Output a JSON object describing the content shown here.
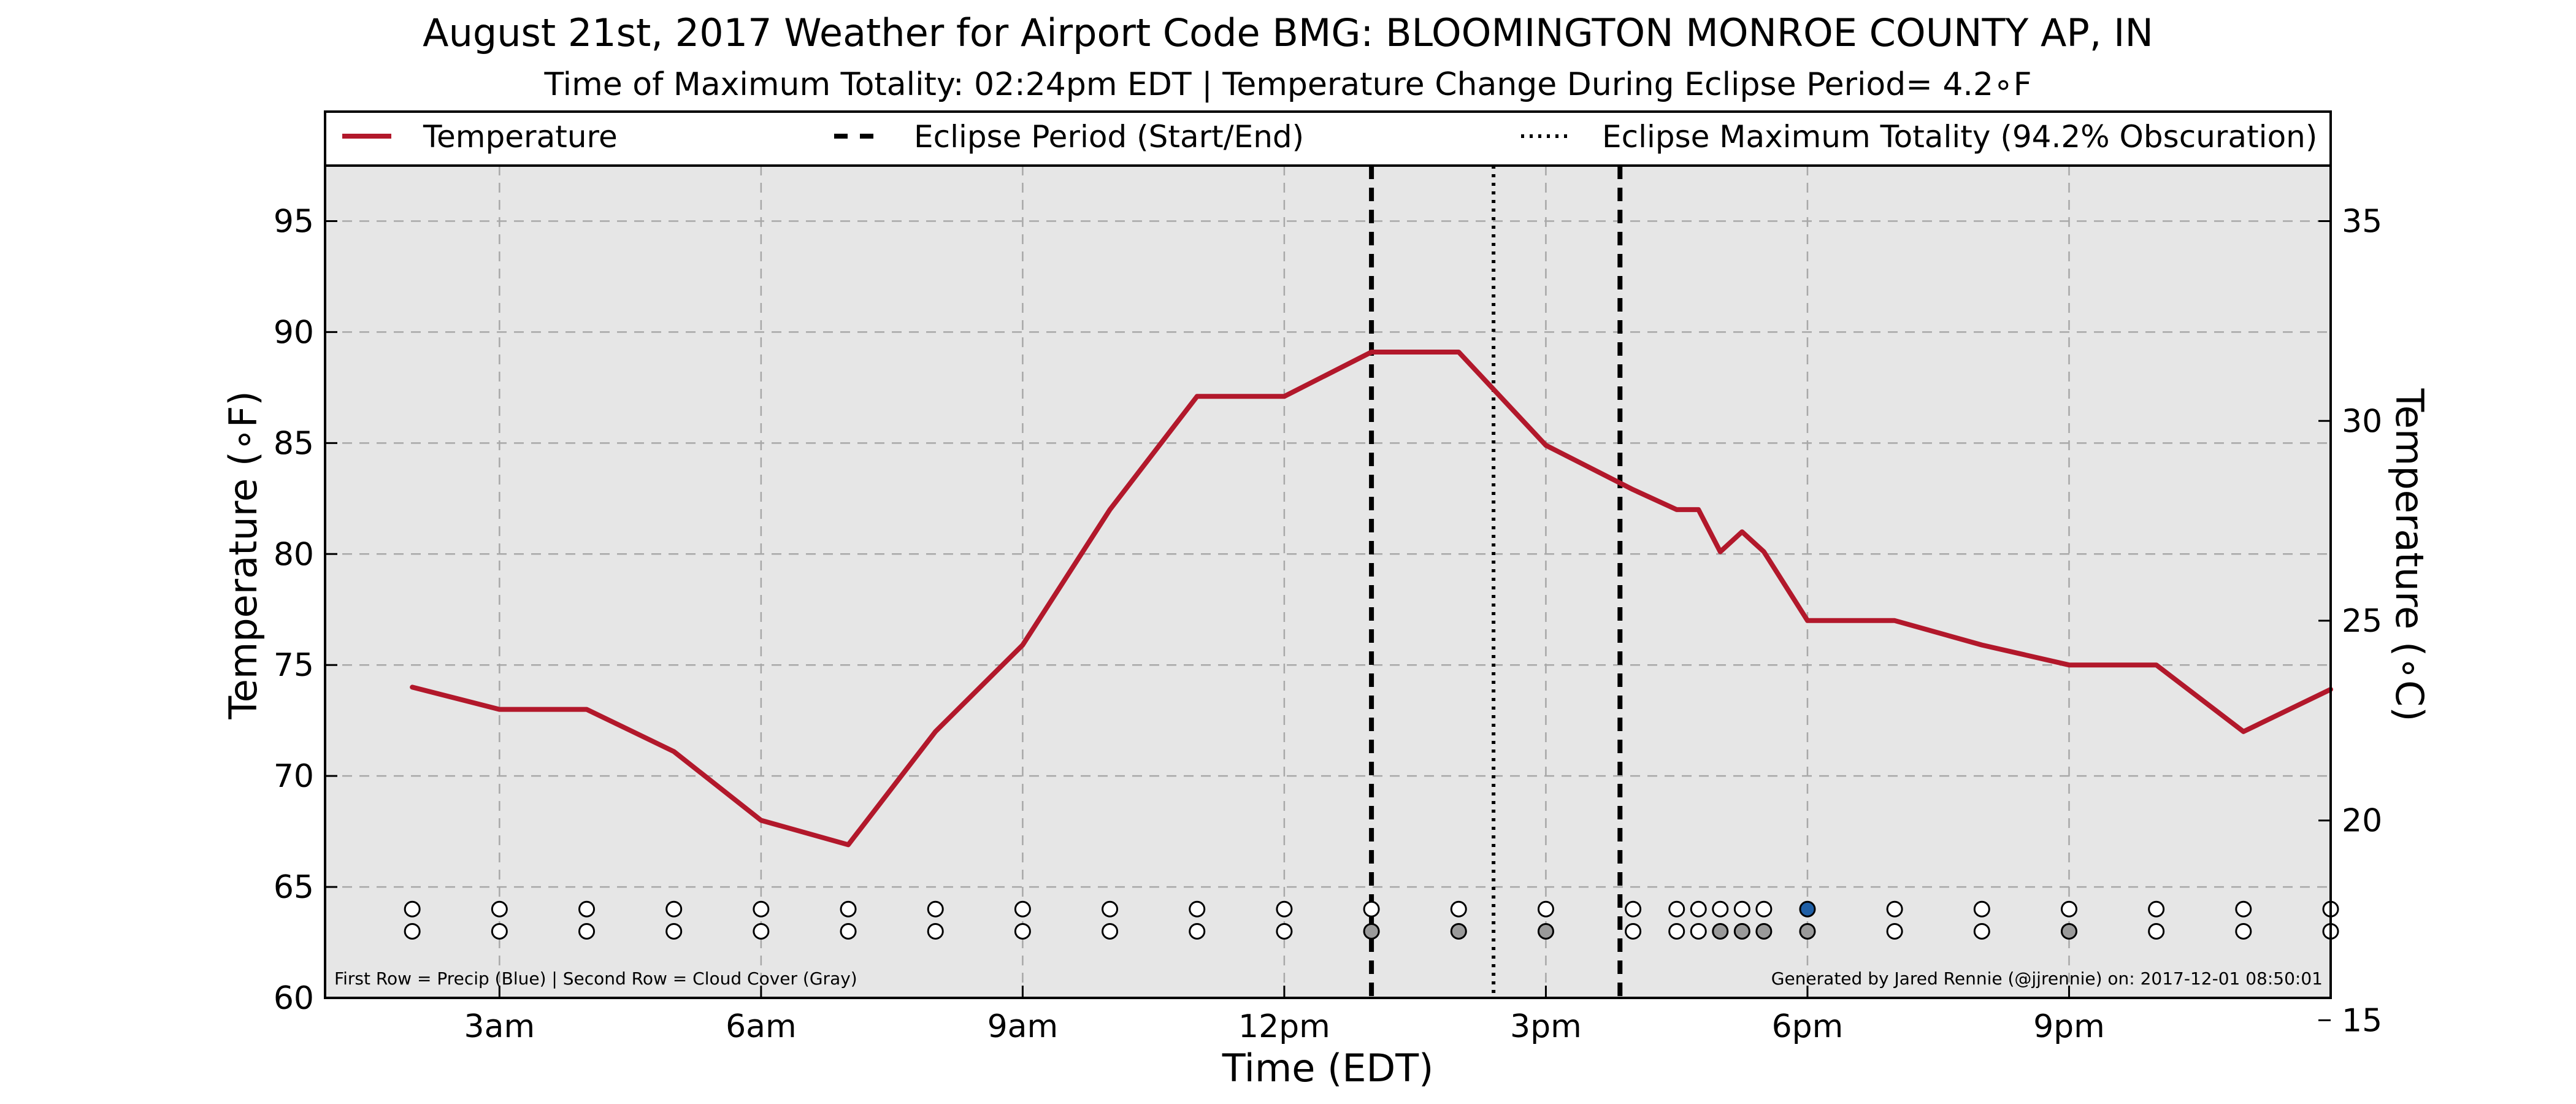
{
  "chart_data": {
    "type": "line",
    "title": "August 21st, 2017 Weather for Airport Code BMG: BLOOMINGTON MONROE COUNTY AP, IN",
    "subtitle": "Time of Maximum Totality: 02:24pm EDT | Temperature Change During Eclipse Period= 4.2∘F",
    "xlabel": "Time (EDT)",
    "ylabel": "Temperature (∘F)",
    "ylabel_right": "Temperature (∘C)",
    "x_unit": "hour of day (EDT)",
    "xlim": [
      1.0,
      24.0
    ],
    "ylim": [
      60,
      97.5
    ],
    "ylim_right": [
      15.56,
      36.39
    ],
    "x_ticks": [
      {
        "x": 3,
        "label": "3am"
      },
      {
        "x": 6,
        "label": "6am"
      },
      {
        "x": 9,
        "label": "9am"
      },
      {
        "x": 12,
        "label": "12pm"
      },
      {
        "x": 15,
        "label": "3pm"
      },
      {
        "x": 18,
        "label": "6pm"
      },
      {
        "x": 21,
        "label": "9pm"
      }
    ],
    "y_ticks": [
      60,
      65,
      70,
      75,
      80,
      85,
      90,
      95
    ],
    "y_ticks_right": [
      15,
      20,
      25,
      30,
      35
    ],
    "grid": true,
    "legend_position": "top",
    "colors": {
      "temperature": "#b2182b",
      "precip": "#1f5fa6",
      "cloud": "#9a9a9a",
      "plot_bg": "#e6e6e6"
    },
    "legend": [
      {
        "label": "Temperature",
        "style": "solid"
      },
      {
        "label": "Eclipse Period (Start/End)",
        "style": "dashed"
      },
      {
        "label": "Eclipse Maximum Totality (94.2% Obscuration)",
        "style": "dotted"
      }
    ],
    "series": [
      {
        "name": "Temperature",
        "x": [
          2.0,
          3.0,
          4.0,
          5.0,
          6.0,
          7.0,
          8.0,
          9.0,
          10.0,
          11.0,
          12.0,
          13.0,
          14.0,
          15.0,
          16.0,
          16.5,
          16.75,
          17.0,
          17.25,
          17.5,
          18.0,
          19.0,
          20.0,
          21.0,
          22.0,
          23.0,
          24.0
        ],
        "y": [
          74,
          73,
          73,
          71.1,
          68,
          66.9,
          72,
          75.9,
          82,
          87.1,
          87.1,
          89.1,
          89.1,
          84.9,
          82.9,
          82,
          82,
          80.1,
          81,
          80.1,
          77,
          77,
          75.9,
          75,
          75,
          72,
          73.9
        ]
      }
    ],
    "eclipse_period": [
      13.0,
      15.85
    ],
    "eclipse_max_totality": 14.4,
    "markers": {
      "x": [
        2.0,
        3.0,
        4.0,
        5.0,
        6.0,
        7.0,
        8.0,
        9.0,
        10.0,
        11.0,
        12.0,
        13.0,
        14.0,
        15.0,
        16.0,
        16.5,
        16.75,
        17.0,
        17.25,
        17.5,
        18.0,
        19.0,
        20.0,
        21.0,
        22.0,
        23.0,
        24.0
      ],
      "precip_row_y": 64,
      "cloud_row_y": 63,
      "precip": [
        0,
        0,
        0,
        0,
        0,
        0,
        0,
        0,
        0,
        0,
        0,
        0,
        0,
        0,
        0,
        0,
        0,
        0,
        0,
        0,
        1,
        0,
        0,
        0,
        0,
        0,
        0
      ],
      "cloud": [
        0,
        0,
        0,
        0,
        0,
        0,
        0,
        0,
        0,
        0,
        0,
        1,
        1,
        1,
        0,
        0,
        0,
        1,
        1,
        1,
        1,
        0,
        0,
        1,
        0,
        0,
        0
      ]
    },
    "footnote_left": "First Row = Precip (Blue) | Second Row = Cloud Cover (Gray)",
    "footnote_right": "Generated by Jared Rennie (@jjrennie) on: 2017-12-01 08:50:01"
  }
}
